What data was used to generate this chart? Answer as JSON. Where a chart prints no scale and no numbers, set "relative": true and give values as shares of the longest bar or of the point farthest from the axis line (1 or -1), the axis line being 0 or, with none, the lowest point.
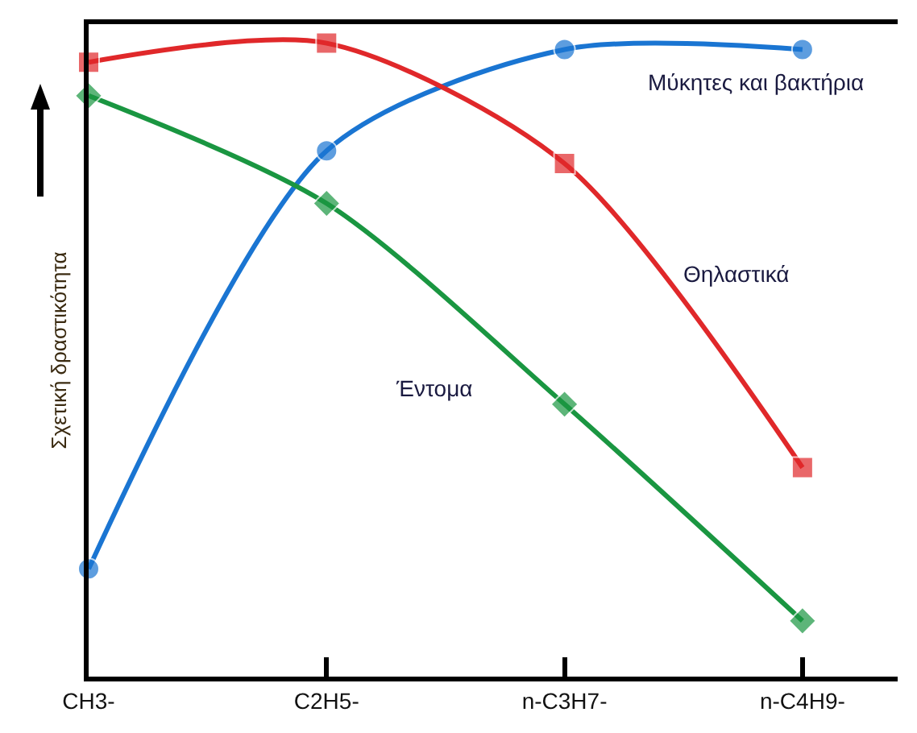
{
  "chart_data": {
    "type": "line",
    "relative": true,
    "ylabel": "Σχετική δραστικότητα",
    "categories": [
      "CH3-",
      "C2H5-",
      "n-C3H7-",
      "n-C4H9-"
    ],
    "grid": false,
    "legend": false,
    "line_style": "solid",
    "series": [
      {
        "name": "Μύκητες και βακτήρια",
        "color": "#1a75d2",
        "marker": "circle",
        "values": [
          0.17,
          0.83,
          0.99,
          0.99
        ]
      },
      {
        "name": "Θηλαστικά",
        "color": "#e0282a",
        "marker": "square",
        "values": [
          0.97,
          1.0,
          0.81,
          0.33
        ]
      },
      {
        "name": "Έντομα",
        "color": "#1a9641",
        "marker": "diamond",
        "values": [
          0.917,
          0.747,
          0.43,
          0.088
        ]
      }
    ]
  }
}
